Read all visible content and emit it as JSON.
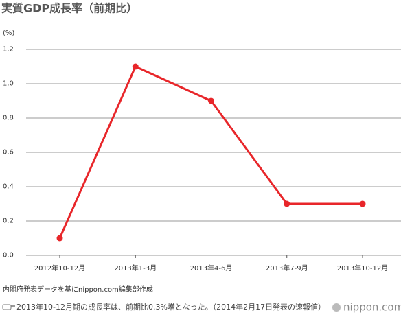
{
  "chart_data": {
    "type": "line",
    "title": "実質GDP成長率（前期比）",
    "ylabel": "(%)",
    "categories": [
      "2012年10-12月",
      "2013年1-3月",
      "2013年4-6月",
      "2013年7-9月",
      "2013年10-12月"
    ],
    "values": [
      0.1,
      1.1,
      0.9,
      0.3,
      0.3
    ],
    "color": "#e8262a",
    "ylim": [
      0,
      1.2
    ],
    "yticks": [
      {
        "value": 0,
        "label": "0.0"
      },
      0.2,
      0.4,
      0.6,
      0.8,
      {
        "value": 1,
        "label": "1.0"
      },
      1.2
    ],
    "grid": true,
    "source": "内閣府発表データを基にnippon.com編集部作成",
    "note": "2013年10-12月期の成長率は、前期比0.3%増となった。（2014年2月17日発表の速報値）",
    "logo": "nippon.com"
  }
}
